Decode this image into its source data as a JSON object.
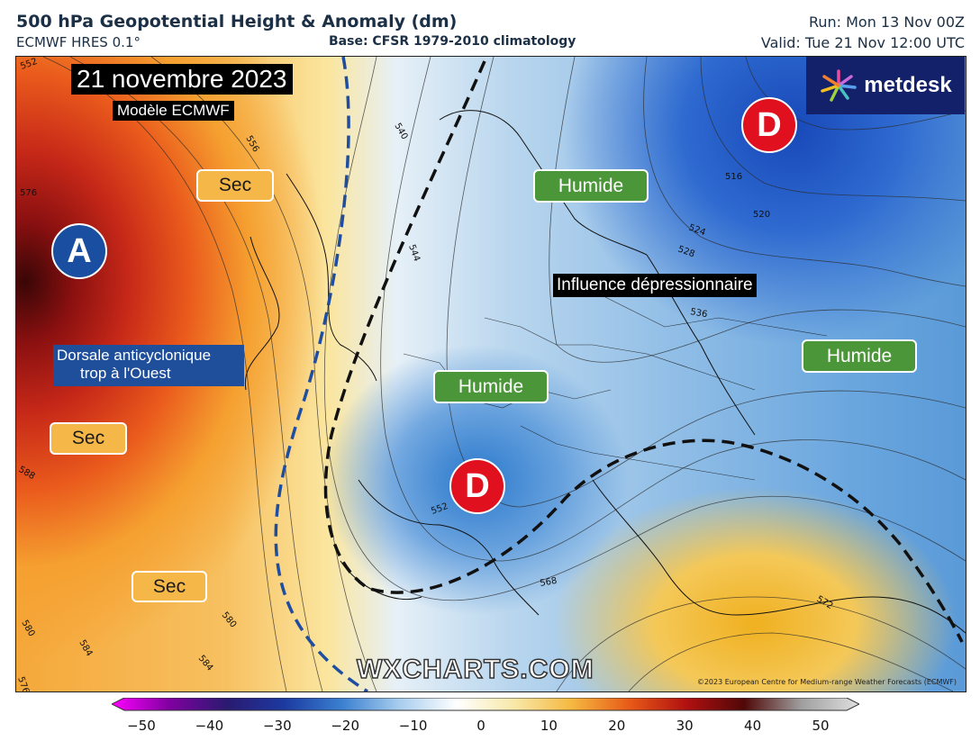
{
  "header": {
    "title": "500 hPa Geopotential Height & Anomaly (dm)",
    "subtitle": "ECMWF HRES 0.1°",
    "base": "Base: CFSR 1979-2010 climatology",
    "run": "Run: Mon 13 Nov 00Z",
    "valid": "Valid: Tue 21 Nov 12:00 UTC"
  },
  "map": {
    "date_label": "21 novembre 2023",
    "model_label": "Modèle ECMWF",
    "logo_text": "metdesk",
    "watermark": "WXCHARTS.COM",
    "copyright": "©2023 European Centre for Medium-range Weather Forecasts (ECMWF)",
    "high_pressure": "A",
    "low_pressure": "D",
    "dorsale_label_line1": "Dorsale anticyclonique",
    "dorsale_label_line2": "trop à l'Ouest",
    "influence_label": "Influence dépressionnaire",
    "dry_label": "Sec",
    "wet_label": "Humide",
    "contour_labels": [
      "552",
      "556",
      "576",
      "540",
      "544",
      "516",
      "520",
      "524",
      "528",
      "536",
      "552",
      "568",
      "572",
      "588",
      "580",
      "584",
      "580",
      "584",
      "576"
    ]
  },
  "colorbar": {
    "min": -50,
    "max": 50,
    "ticks": [
      "−50",
      "−40",
      "−30",
      "−20",
      "−10",
      "0",
      "10",
      "20",
      "30",
      "40",
      "50"
    ],
    "colors": [
      "#ff00ff",
      "#8000a0",
      "#2a1a70",
      "#1c3aa0",
      "#3a80d0",
      "#a8cdee",
      "#ffffff",
      "#f8e8a8",
      "#f5b840",
      "#e85a18",
      "#b01010",
      "#500808",
      "#a0a0a0",
      "#e0e0e0"
    ]
  }
}
